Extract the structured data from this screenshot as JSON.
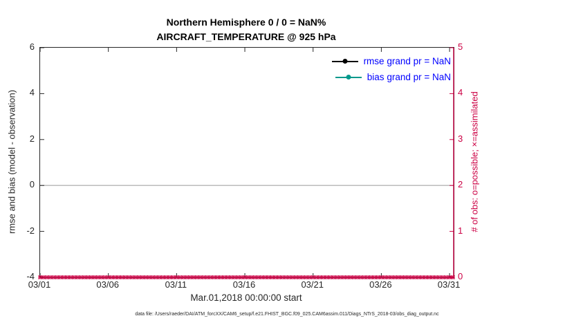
{
  "chart_data": {
    "type": "line",
    "title_line1": "Northern Hemisphere 0 / 0 = NaN%",
    "title_line2": "AIRCRAFT_TEMPERATURE @ 925 hPa",
    "xlabel": "Mar.01,2018 00:00:00 start",
    "ylabel_left": "rmse and bias (model - observation)",
    "ylabel_right": "# of obs: o=possible; ×=assimilated",
    "x_domain": [
      1,
      31.3
    ],
    "x_ticks": {
      "days": [
        1,
        6,
        11,
        16,
        21,
        26,
        31
      ],
      "labels": [
        "03/01",
        "03/06",
        "03/11",
        "03/16",
        "03/21",
        "03/26",
        "03/31"
      ]
    },
    "y_left": {
      "range": [
        -4,
        6
      ],
      "ticks": [
        -4,
        -2,
        0,
        2,
        4,
        6
      ]
    },
    "y_right": {
      "range": [
        0,
        5
      ],
      "ticks": [
        0,
        1,
        2,
        3,
        4,
        5
      ]
    },
    "zero_line": 0,
    "series": [
      {
        "name": "rmse",
        "grand_pr": "NaN",
        "color": "#000000",
        "values": []
      },
      {
        "name": "bias",
        "grand_pr": "NaN",
        "color": "#00998c",
        "values": []
      }
    ],
    "legend": [
      {
        "label": "rmse grand pr = NaN",
        "color": "#000000"
      },
      {
        "label": "bias grand pr = NaN",
        "color": "#00998c"
      }
    ],
    "legend_text_color": "#0000ff",
    "obs_counts": {
      "possible": 0,
      "assimilated": 0,
      "value": 0,
      "marker_days": {
        "start": 1,
        "end": 31.25,
        "step": 0.25
      }
    },
    "colors": {
      "left_axis": "#262626",
      "right_axis": "#cc0044",
      "zero_line": "#b5b5b5"
    },
    "footer": "data file: /Users/raeder/DAI/ATM_forcXX/CAM6_setup/f.e21.FHIST_BGC.f09_025.CAM6assim.011/Diags_NTrS_2018-03/obs_diag_output.nc"
  }
}
